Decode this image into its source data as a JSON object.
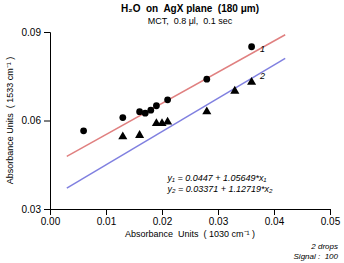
{
  "chart_data": {
    "type": "scatter",
    "title": "H₂O  on  AgX plane  (180 μm)",
    "subtitle": "MCT,  0.8 μl,  0.1 sec",
    "x_label": "Absorbance  Units  ( 1030 cm⁻¹ )",
    "y_label": "Absorbance Units  ( 1533 cm⁻¹ )",
    "xlim": [
      0.0,
      0.05
    ],
    "ylim": [
      0.03,
      0.09
    ],
    "xticks": [
      {
        "value": 0.0,
        "label": "0.00"
      },
      0.01,
      0.02,
      0.03,
      0.04,
      0.05
    ],
    "yticks": [
      0.03,
      0.06,
      0.09
    ],
    "grid": false,
    "series": [
      {
        "type": "line",
        "color": "#e08080",
        "line_style": "solid",
        "x": [
          0.003,
          0.042
        ],
        "values": [
          0.04786947,
          0.08907258
        ]
      },
      {
        "type": "line",
        "color": "#8080e0",
        "line_style": "solid",
        "x": [
          0.003,
          0.042
        ],
        "values": [
          0.03709157,
          0.08105198
        ]
      },
      {
        "type": "scatter",
        "color": "black",
        "marker": "circle",
        "x": [
          0.006,
          0.013,
          0.016,
          0.017,
          0.018,
          0.019,
          0.021,
          0.028,
          0.036
        ],
        "values": [
          0.0565,
          0.061,
          0.063,
          0.0625,
          0.0635,
          0.065,
          0.067,
          0.074,
          0.085
        ]
      },
      {
        "type": "scatter",
        "color": "black",
        "marker": "triangle",
        "x": [
          0.013,
          0.016,
          0.019,
          0.02,
          0.021,
          0.028,
          0.033,
          0.036
        ],
        "values": [
          0.0545,
          0.055,
          0.059,
          0.059,
          0.0595,
          0.063,
          0.07,
          0.073
        ]
      }
    ],
    "annotations": [
      {
        "text": [
          "1"
        ],
        "x": 0.0375,
        "y": 0.084
      },
      {
        "text": [
          "2"
        ],
        "x": 0.0375,
        "y": 0.075
      },
      {
        "text": [
          "y₁ = 0.0447 + 1.05649*x₁",
          "y₂ = 0.03371 + 1.12719*x₂"
        ],
        "x": 0.021,
        "y": 0.0385
      },
      {
        "text": [
          "2 drops",
          "Signal :  100"
        ]
      }
    ]
  }
}
